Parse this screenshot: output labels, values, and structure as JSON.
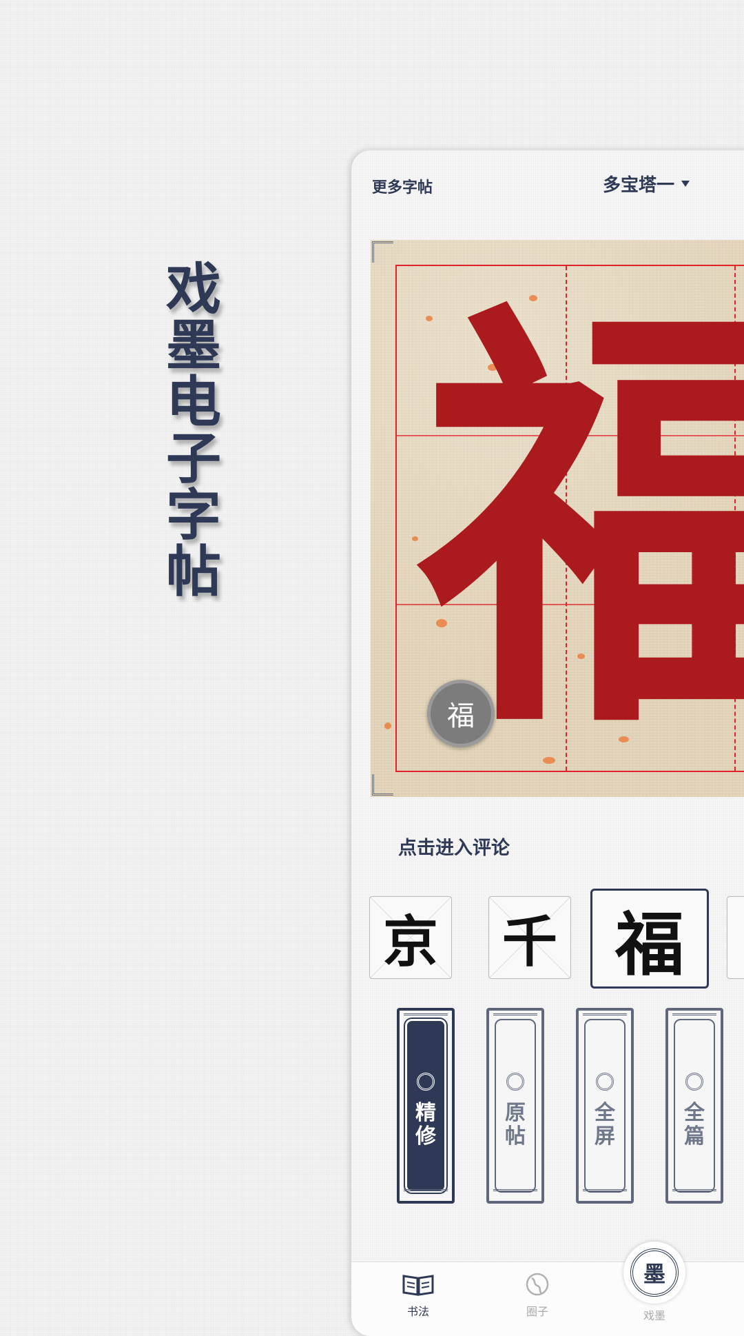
{
  "promo": {
    "title": "戏墨电子字帖"
  },
  "header": {
    "more_label": "更多字帖",
    "selected_font": "多宝塔一"
  },
  "canvas": {
    "character": "福",
    "badge_char": "福"
  },
  "comment": {
    "label": "点击进入评论"
  },
  "thumbnails": [
    {
      "char": "京"
    },
    {
      "char": "千"
    },
    {
      "char": "福"
    }
  ],
  "modes": [
    {
      "label": "精修"
    },
    {
      "label": "原帖"
    },
    {
      "label": "全屏"
    },
    {
      "label": "全篇"
    }
  ],
  "tabs": [
    {
      "label": "书法"
    },
    {
      "label": "圈子"
    },
    {
      "label": "戏墨"
    }
  ],
  "colors": {
    "accent": "#2e3a55",
    "ink_red": "#ab1a1d",
    "grid_red": "#e0222a"
  },
  "icons": {
    "tab_calligraphy": "open-book-icon",
    "tab_circle": "globe-icon",
    "tab_ximo": "ink-seal-icon"
  }
}
